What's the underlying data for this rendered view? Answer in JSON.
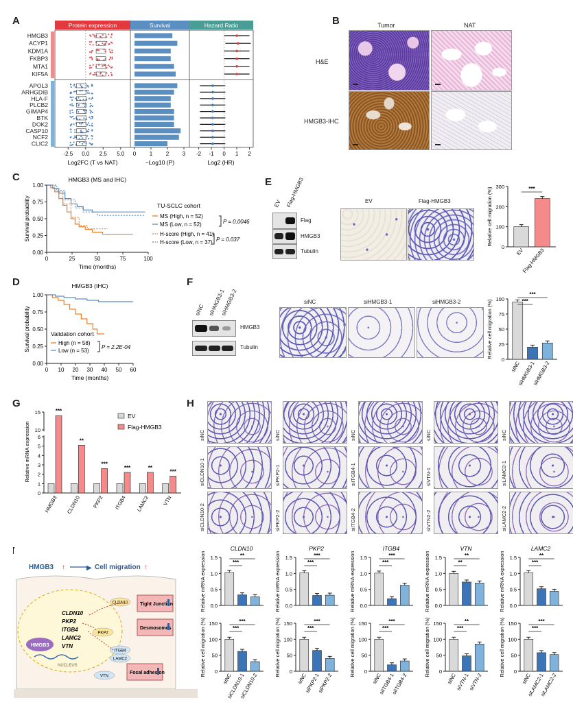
{
  "panel_letters": {
    "A": "A",
    "B": "B",
    "C": "C",
    "D": "D",
    "E": "E",
    "F": "F",
    "G": "G",
    "H": "H",
    "I": "I"
  },
  "colors": {
    "red": "#e2393f",
    "blue": "#3b74b7",
    "lightblue": "#7fb3dc",
    "gray": "#cfcfcf",
    "pink": "#f48a8a",
    "teal": "#4a9d95",
    "orange": "#ef7d24",
    "steel": "#5b8fc2"
  },
  "panelA": {
    "headers": [
      "Protein expression",
      "Survival",
      "Hazard Ratio"
    ],
    "genes_up": [
      "HMGB3",
      "ACYP1",
      "KDM1A",
      "FKBP3",
      "MTA1",
      "KIF5A"
    ],
    "genes_down": [
      "APOL3",
      "ARHGDIB",
      "HLA-F",
      "PLCB2",
      "GIMAP4",
      "BTK",
      "DOK2",
      "CASP10",
      "NCF2",
      "CLIC2"
    ],
    "axis1": {
      "ticks": [
        "-2.5",
        "0.0",
        "2.5",
        "5.0"
      ],
      "label": "Log2FC (T vs NAT)"
    },
    "axis2": {
      "ticks": [
        "0",
        "1",
        "2",
        "3"
      ],
      "label": "−Log10 (P)"
    },
    "axis3": {
      "ticks": [
        "-2",
        "-1",
        "0",
        "1",
        "2"
      ],
      "label": "Log2 (HR)"
    },
    "survival_values": [
      2.3,
      2.6,
      2.2,
      2.2,
      2.4,
      2.5,
      2.6,
      2.4,
      2.2,
      2.2,
      2.4,
      2.4,
      2.4,
      2.8,
      2.7,
      2.0
    ],
    "hr_values": [
      1.0,
      1.1,
      1.0,
      1.0,
      1.0,
      1.0,
      -0.9,
      -0.9,
      -0.9,
      -0.9,
      -0.9,
      -0.9,
      -0.9,
      -0.9,
      -0.9,
      -0.9
    ]
  },
  "panelB": {
    "col_tumor": "Tumor",
    "col_nat": "NAT",
    "row_he": "H&E",
    "row_ihc": "HMGB3-IHC"
  },
  "panelC": {
    "title": "HMGB3 (MS and IHC)",
    "ylabel": "Survival probability",
    "xlabel": "Time (months)",
    "xticks": [
      "0",
      "25",
      "50",
      "75",
      "100"
    ],
    "yticks": [
      "0.00",
      "0.25",
      "0.50",
      "0.75",
      "1.00"
    ],
    "cohort": "TU-SCLC cohort",
    "legend": [
      "MS (High, n = 52)",
      "MS (Low, n = 52)",
      "H-score (High, n = 41)",
      "H-score (Low, n = 37)"
    ],
    "p1": "P = 0.0046",
    "p2": "P = 0.037"
  },
  "panelD": {
    "title": "HMGB3 (IHC)",
    "ylabel": "Survival probability",
    "xlabel": "Time (months)",
    "xticks": [
      "0",
      "10",
      "20",
      "30",
      "40",
      "50",
      "60"
    ],
    "yticks": [
      "0.00",
      "0.25",
      "0.50",
      "0.75",
      "1.00"
    ],
    "cohort": "Validation cohort",
    "legend": [
      "High (n = 58)",
      "Low (n = 53)"
    ],
    "p": "P = 2.2E-04"
  },
  "panelE": {
    "lanes": [
      "EV",
      "Flag-HMGB3"
    ],
    "bands": [
      "Flag",
      "HMGB3",
      "Tubulin"
    ],
    "img_labels": [
      "EV",
      "Flag-HMGB3"
    ],
    "ylabel": "Relative cell migration (%)",
    "yticks": [
      "0",
      "100",
      "200",
      "300"
    ],
    "categories": [
      "EV",
      "Flag-HMGB3"
    ],
    "values": [
      100,
      240
    ],
    "sig": "***"
  },
  "panelF": {
    "lanes": [
      "siNC",
      "siHMGB3-1",
      "siHMGB3-2"
    ],
    "bands": [
      "HMGB3",
      "Tubulin"
    ],
    "img_labels": [
      "siNC",
      "siHMGB3-1",
      "siHMGB3-2"
    ],
    "ylabel": "Relative cell migration (%)",
    "yticks": [
      "0",
      "25",
      "50",
      "75",
      "100"
    ],
    "categories": [
      "siNC",
      "siHMGB3-1",
      "siHMGB3-2"
    ],
    "values": [
      95,
      20,
      27
    ],
    "sig": [
      "***",
      "***"
    ]
  },
  "panelG": {
    "ylabel": "Relative mRNA expression",
    "legend": [
      "EV",
      "Flag-HMGB3"
    ],
    "categories": [
      "HMGB3",
      "CLDN10",
      "PKP2",
      "ITGB4",
      "LAMC2",
      "VTN"
    ],
    "ev": [
      1,
      1,
      1,
      1,
      1,
      1
    ],
    "flag": [
      14,
      5.1,
      2.6,
      2.2,
      2.2,
      1.8
    ],
    "sig": [
      "***",
      "**",
      "***",
      "***",
      "**",
      "***"
    ],
    "yticks": [
      "0",
      "1",
      "2",
      "3",
      "4",
      "5",
      "6",
      "10",
      "15"
    ]
  },
  "panelH": {
    "columns": [
      [
        "siNC",
        "siCLDN10-1",
        "siCLDN10-2"
      ],
      [
        "siNC",
        "siPKP2-1",
        "siPKP2-2"
      ],
      [
        "siNC",
        "siITGB4-1",
        "siITGB4-2"
      ],
      [
        "siNC",
        "siVTN-1",
        "siVTN2-2"
      ],
      [
        "siNC",
        "siLAMC2-1",
        "siLAMC2-2"
      ]
    ]
  },
  "panelI": {
    "header_left": "HMGB3",
    "header_right": "Cell migration",
    "genes": [
      "CLDN10",
      "PKP2",
      "ITGB4",
      "LAMC2",
      "VTN"
    ],
    "nucleus": "NUCLEUS",
    "hmgb3": "HMGB3",
    "boxes": [
      "Tight Junction",
      "Desmosomes",
      "Focal adhesion"
    ],
    "proteins": [
      "CLDN10",
      "PKP2",
      "ITGB4",
      "LAMC2",
      "VTN"
    ],
    "charts": [
      {
        "title": "CLDN10",
        "cats": [
          "siNC",
          "siCLDN10-1",
          "siCLDN10-2"
        ],
        "mrna": [
          1.03,
          0.33,
          0.27
        ],
        "mig": [
          100,
          62,
          30
        ],
        "sig_mrna": [
          "***",
          "**"
        ],
        "sig_mig": [
          "***",
          "***"
        ]
      },
      {
        "title": "PKP2",
        "cats": [
          "siNC",
          "siPKP2-1",
          "siPKP2-2"
        ],
        "mrna": [
          1.02,
          0.31,
          0.32
        ],
        "mig": [
          100,
          65,
          40
        ],
        "sig_mrna": [
          "***",
          "***"
        ],
        "sig_mig": [
          "***",
          "***"
        ]
      },
      {
        "title": "ITGB4",
        "cats": [
          "siNC",
          "siITGB4-1",
          "siITGB4-2"
        ],
        "mrna": [
          1.01,
          0.21,
          0.63
        ],
        "mig": [
          100,
          20,
          32
        ],
        "sig_mrna": [
          "***",
          "***"
        ],
        "sig_mig": [
          "***",
          "***"
        ]
      },
      {
        "title": "VTN",
        "cats": [
          "siNC",
          "siVTN-1",
          "siVTN-2"
        ],
        "mrna": [
          1.0,
          0.73,
          0.7
        ],
        "mig": [
          100,
          48,
          85
        ],
        "sig_mrna": [
          "**",
          "**"
        ],
        "sig_mig": [
          "***",
          "**"
        ]
      },
      {
        "title": "LAMC2",
        "cats": [
          "siNC",
          "siLAMC2-1",
          "siLAMC2-2"
        ],
        "mrna": [
          1.02,
          0.52,
          0.44
        ],
        "mig": [
          100,
          58,
          52
        ],
        "sig_mrna": [
          "***",
          "**"
        ],
        "sig_mig": [
          "***",
          "***"
        ]
      }
    ],
    "ylabel_mrna": "Relative mRNA expression",
    "ylabel_mig": "Relative cell migration (%)",
    "yticks_mrna": [
      "0.0",
      "0.5",
      "1.0",
      "1.5"
    ],
    "yticks_mig": [
      "0",
      "50",
      "100",
      "150"
    ]
  },
  "chart_data": [
    {
      "type": "bar",
      "title": "",
      "categories": [
        "EV",
        "Flag-HMGB3"
      ],
      "values": [
        100,
        240
      ],
      "ylabel": "Relative cell migration (%)",
      "ylim": [
        0,
        300
      ]
    },
    {
      "type": "bar",
      "title": "",
      "categories": [
        "siNC",
        "siHMGB3-1",
        "siHMGB3-2"
      ],
      "values": [
        95,
        20,
        27
      ],
      "ylabel": "Relative cell migration (%)",
      "ylim": [
        0,
        100
      ]
    },
    {
      "type": "bar",
      "title": "",
      "categories": [
        "HMGB3",
        "CLDN10",
        "PKP2",
        "ITGB4",
        "LAMC2",
        "VTN"
      ],
      "series": [
        {
          "name": "EV",
          "values": [
            1,
            1,
            1,
            1,
            1,
            1
          ]
        },
        {
          "name": "Flag-HMGB3",
          "values": [
            14,
            5.1,
            2.6,
            2.2,
            2.2,
            1.8
          ]
        }
      ],
      "ylabel": "Relative mRNA expression"
    }
  ]
}
